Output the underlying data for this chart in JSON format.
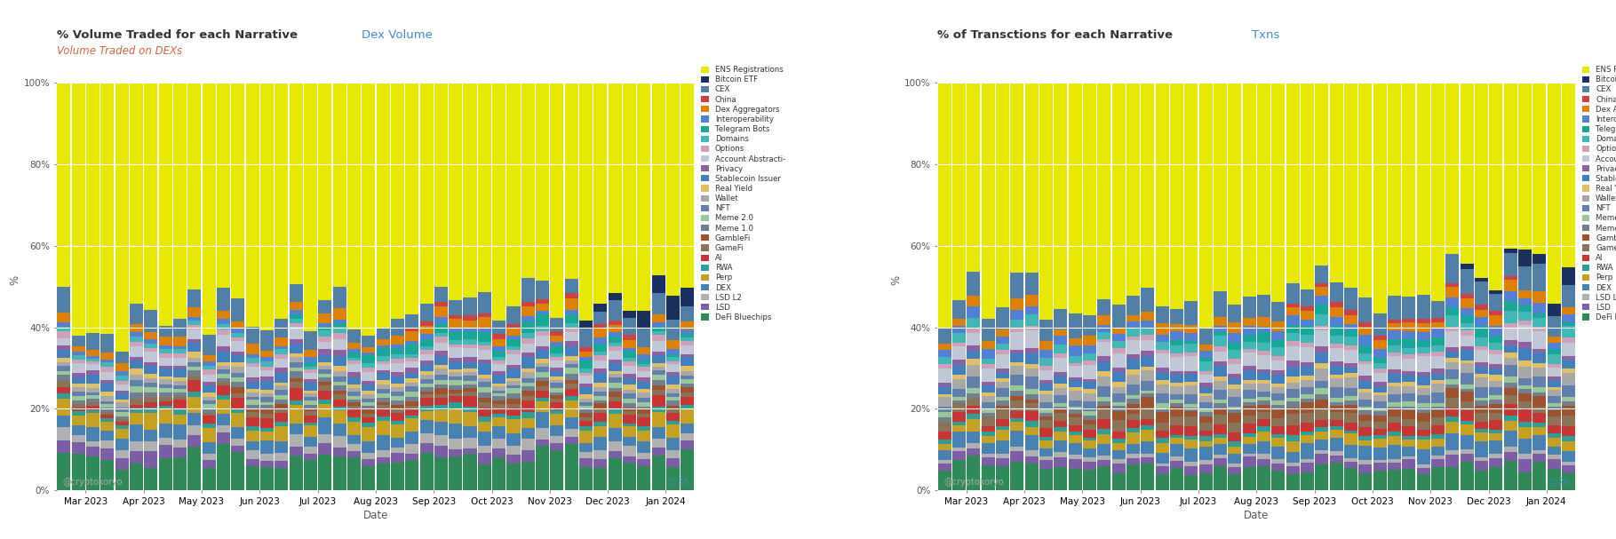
{
  "title_left": "% Volume Traded for each Narrative",
  "title_left_highlight": "Dex Volume",
  "subtitle_left": "Volume Traded on DEXs",
  "title_right": "% of Transctions for each Narrative",
  "title_right_highlight": "Txns",
  "xlabel": "Date",
  "ylabel": "%",
  "background_color": "#ffffff",
  "border_color": "#f0c0b0",
  "watermark": "@cryptokoryo",
  "month_labels": [
    "Mar 2023",
    "Apr 2023",
    "May 2023",
    "Jun 2023",
    "Jul 2023",
    "Aug 2023",
    "Sep 2023",
    "Oct 2023",
    "Nov 2023",
    "Dec 2023",
    "Jan 2024"
  ],
  "narratives": [
    "DeFi Bluechips",
    "LSD",
    "LSD L2",
    "DEX",
    "Perp",
    "RWA",
    "AI",
    "GameFi",
    "GambleFi",
    "Meme 1.0",
    "Meme 2.0",
    "NFT",
    "Wallet",
    "Real Yield",
    "Stablecoin Issuer",
    "Privacy",
    "Account Abstracti-",
    "Options",
    "Domains",
    "Telegram Bots",
    "Interoperability",
    "Dex Aggregators",
    "China",
    "CEX",
    "Bitcoin ETF",
    "ENS Registrations"
  ],
  "colors": [
    "#2e8b57",
    "#7b5ea7",
    "#b0b0b0",
    "#4682b4",
    "#c8a020",
    "#2aa198",
    "#cc3333",
    "#8b7355",
    "#a0522d",
    "#708090",
    "#98c898",
    "#6080b0",
    "#a8a8a8",
    "#e0c060",
    "#4080c0",
    "#9060a0",
    "#c0c8d8",
    "#d0a0b8",
    "#40b8b8",
    "#18a898",
    "#5080d8",
    "#e08000",
    "#d04040",
    "#5080a8",
    "#1a3060",
    "#e8e800"
  ],
  "vol_data": {
    "DeFi Bluechips": [
      8,
      7,
      8,
      7,
      8,
      8,
      8,
      8,
      8,
      7,
      8
    ],
    "LSD": [
      3,
      3,
      2,
      2,
      2,
      2,
      2,
      2,
      2,
      2,
      2
    ],
    "LSD L2": [
      2,
      2,
      2,
      2,
      2,
      2,
      2,
      2,
      2,
      2,
      2
    ],
    "DEX": [
      3,
      3,
      3,
      3,
      3,
      3,
      3,
      3,
      3,
      3,
      3
    ],
    "Perp": [
      3,
      3,
      3,
      3,
      3,
      3,
      3,
      3,
      3,
      3,
      3
    ],
    "RWA": [
      1,
      1,
      1,
      1,
      1,
      1,
      1,
      1,
      1,
      1,
      1
    ],
    "AI": [
      1,
      1,
      2,
      2,
      2,
      2,
      2,
      2,
      2,
      2,
      2
    ],
    "GameFi": [
      1,
      1,
      1,
      1,
      1,
      1,
      1,
      1,
      1,
      1,
      1
    ],
    "GambleFi": [
      0,
      0,
      0,
      1,
      1,
      1,
      1,
      1,
      1,
      1,
      1
    ],
    "Meme 1.0": [
      1,
      1,
      1,
      1,
      1,
      1,
      1,
      1,
      1,
      1,
      1
    ],
    "Meme 2.0": [
      1,
      1,
      1,
      1,
      1,
      1,
      1,
      1,
      1,
      1,
      1
    ],
    "NFT": [
      1,
      1,
      1,
      1,
      1,
      1,
      1,
      1,
      1,
      1,
      1
    ],
    "Wallet": [
      1,
      1,
      1,
      1,
      1,
      1,
      1,
      1,
      1,
      1,
      1
    ],
    "Real Yield": [
      1,
      1,
      1,
      1,
      1,
      1,
      1,
      1,
      1,
      1,
      1
    ],
    "Stablecoin Issuer": [
      2,
      2,
      2,
      2,
      2,
      2,
      2,
      2,
      2,
      2,
      2
    ],
    "Privacy": [
      1,
      1,
      1,
      1,
      1,
      1,
      1,
      1,
      1,
      1,
      1
    ],
    "Account Abstracti-": [
      2,
      2,
      2,
      2,
      2,
      2,
      2,
      2,
      2,
      2,
      2
    ],
    "Options": [
      1,
      1,
      1,
      1,
      1,
      1,
      1,
      1,
      1,
      1,
      1
    ],
    "Domains": [
      1,
      1,
      1,
      1,
      1,
      1,
      1,
      1,
      1,
      1,
      1
    ],
    "Telegram Bots": [
      0,
      0,
      0,
      0,
      1,
      2,
      2,
      2,
      2,
      2,
      1
    ],
    "Interoperability": [
      1,
      1,
      1,
      1,
      1,
      1,
      1,
      1,
      1,
      1,
      1
    ],
    "Dex Aggregators": [
      2,
      2,
      2,
      2,
      2,
      2,
      2,
      2,
      2,
      2,
      2
    ],
    "China": [
      0,
      0,
      0,
      0,
      0,
      0,
      1,
      1,
      1,
      1,
      0
    ],
    "CEX": [
      4,
      4,
      4,
      4,
      4,
      4,
      4,
      4,
      4,
      4,
      4
    ],
    "Bitcoin ETF": [
      0,
      0,
      0,
      0,
      0,
      0,
      0,
      0,
      0,
      2,
      5
    ],
    "ENS Registrations": [
      55,
      56,
      54,
      57,
      54,
      52,
      54,
      54,
      54,
      52,
      48
    ]
  },
  "txn_data": {
    "DeFi Bluechips": [
      6,
      5,
      5,
      5,
      5,
      5,
      5,
      5,
      5,
      5,
      5
    ],
    "LSD": [
      2,
      2,
      2,
      2,
      2,
      2,
      2,
      2,
      2,
      2,
      2
    ],
    "LSD L2": [
      1,
      1,
      1,
      1,
      1,
      1,
      1,
      1,
      1,
      1,
      1
    ],
    "DEX": [
      3,
      3,
      3,
      3,
      3,
      3,
      3,
      3,
      3,
      3,
      3
    ],
    "Perp": [
      2,
      2,
      2,
      2,
      2,
      2,
      2,
      2,
      2,
      2,
      2
    ],
    "RWA": [
      1,
      1,
      1,
      1,
      1,
      1,
      1,
      1,
      1,
      1,
      1
    ],
    "AI": [
      2,
      2,
      2,
      2,
      2,
      2,
      2,
      2,
      2,
      2,
      2
    ],
    "GameFi": [
      2,
      2,
      2,
      2,
      2,
      2,
      2,
      2,
      2,
      2,
      2
    ],
    "GambleFi": [
      0,
      1,
      1,
      2,
      2,
      2,
      2,
      2,
      2,
      2,
      2
    ],
    "Meme 1.0": [
      1,
      1,
      1,
      1,
      1,
      1,
      1,
      1,
      1,
      1,
      1
    ],
    "Meme 2.0": [
      1,
      1,
      1,
      1,
      1,
      1,
      1,
      1,
      1,
      1,
      1
    ],
    "NFT": [
      2,
      2,
      2,
      2,
      2,
      2,
      2,
      2,
      2,
      2,
      2
    ],
    "Wallet": [
      2,
      2,
      2,
      2,
      2,
      2,
      2,
      2,
      2,
      2,
      2
    ],
    "Real Yield": [
      1,
      1,
      1,
      1,
      1,
      1,
      1,
      1,
      1,
      1,
      1
    ],
    "Stablecoin Issuer": [
      2,
      2,
      2,
      2,
      2,
      2,
      2,
      2,
      2,
      2,
      2
    ],
    "Privacy": [
      1,
      1,
      1,
      1,
      1,
      1,
      1,
      1,
      1,
      1,
      1
    ],
    "Account Abstracti-": [
      3,
      3,
      3,
      3,
      3,
      3,
      3,
      3,
      3,
      3,
      3
    ],
    "Options": [
      1,
      1,
      1,
      1,
      1,
      1,
      1,
      1,
      1,
      1,
      1
    ],
    "Domains": [
      2,
      2,
      2,
      2,
      2,
      2,
      2,
      2,
      2,
      2,
      2
    ],
    "Telegram Bots": [
      0,
      0,
      0,
      0,
      1,
      2,
      2,
      2,
      2,
      2,
      1
    ],
    "Interoperability": [
      2,
      2,
      2,
      2,
      2,
      2,
      2,
      2,
      2,
      2,
      2
    ],
    "Dex Aggregators": [
      2,
      2,
      2,
      2,
      2,
      2,
      2,
      2,
      2,
      2,
      2
    ],
    "China": [
      0,
      0,
      0,
      0,
      0,
      0,
      1,
      1,
      1,
      1,
      0
    ],
    "CEX": [
      5,
      5,
      5,
      5,
      5,
      5,
      5,
      5,
      5,
      5,
      5
    ],
    "Bitcoin ETF": [
      0,
      0,
      0,
      0,
      0,
      0,
      0,
      0,
      0,
      1,
      3
    ],
    "ENS Registrations": [
      52,
      52,
      50,
      52,
      52,
      50,
      50,
      50,
      50,
      48,
      44
    ]
  },
  "n_months": 11,
  "n_weeks": 44
}
